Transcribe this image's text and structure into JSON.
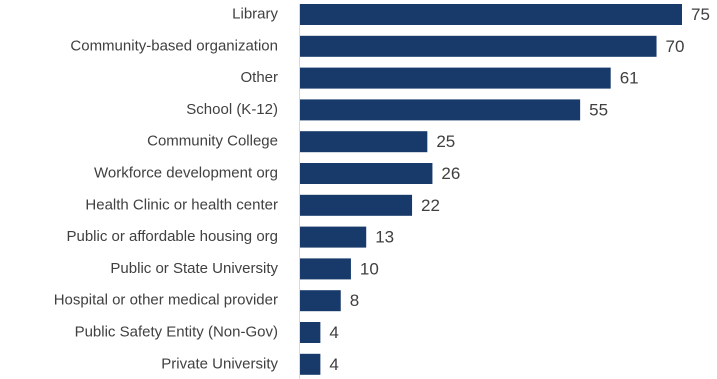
{
  "chart_data": {
    "type": "bar",
    "orientation": "horizontal",
    "categories": [
      "Library",
      "Community-based organization",
      "Other",
      "School (K-12)",
      "Community College",
      "Workforce development org",
      "Health Clinic or health center",
      "Public or affordable housing org",
      "Public or State University",
      "Hospital or other medical provider",
      "Public Safety Entity (Non-Gov)",
      "Private University"
    ],
    "values": [
      75,
      70,
      61,
      55,
      25,
      26,
      22,
      13,
      10,
      8,
      4,
      4
    ],
    "xlim": [
      0,
      75
    ],
    "grid": false,
    "legend": "none",
    "bar_color": "#173a6b"
  }
}
